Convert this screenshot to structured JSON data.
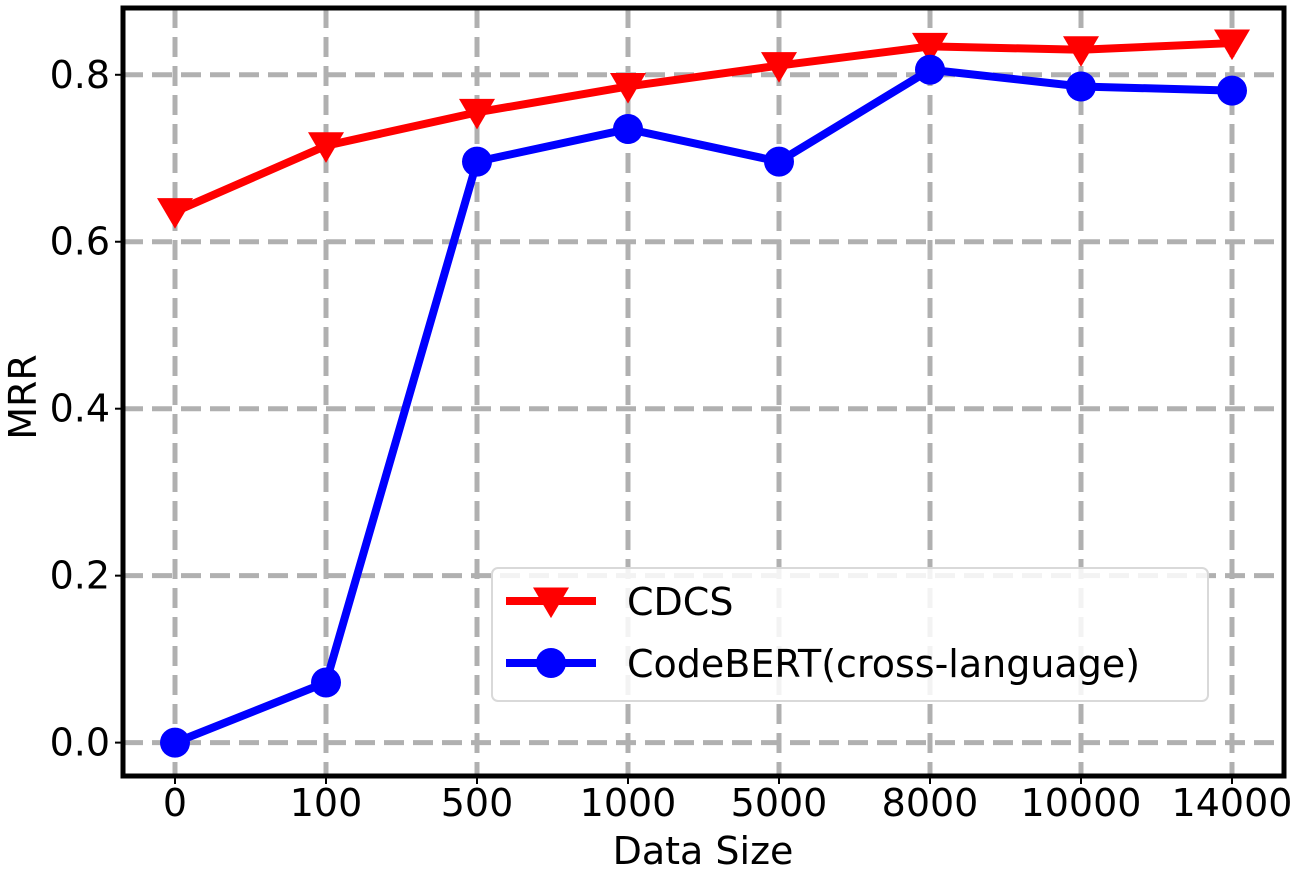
{
  "chart_data": {
    "type": "line",
    "categories": [
      "0",
      "100",
      "500",
      "1000",
      "5000",
      "8000",
      "10000",
      "14000"
    ],
    "xlabel": "Data Size",
    "ylabel": "MRR",
    "ylim": [
      -0.04,
      0.88
    ],
    "yticks": [
      0.0,
      0.2,
      0.4,
      0.6,
      0.8
    ],
    "ytick_labels": [
      "0.0",
      "0.2",
      "0.4",
      "0.6",
      "0.8"
    ],
    "grid": true,
    "legend_position": "lower-right",
    "series": [
      {
        "name": "CDCS",
        "color": "#ff0000",
        "marker": "triangle-down",
        "values": [
          0.636,
          0.715,
          0.755,
          0.786,
          0.811,
          0.834,
          0.83,
          0.838
        ]
      },
      {
        "name": "CodeBERT(cross-language)",
        "color": "#0000ff",
        "marker": "circle",
        "values": [
          0.0,
          0.072,
          0.696,
          0.735,
          0.696,
          0.806,
          0.786,
          0.781
        ]
      }
    ]
  }
}
